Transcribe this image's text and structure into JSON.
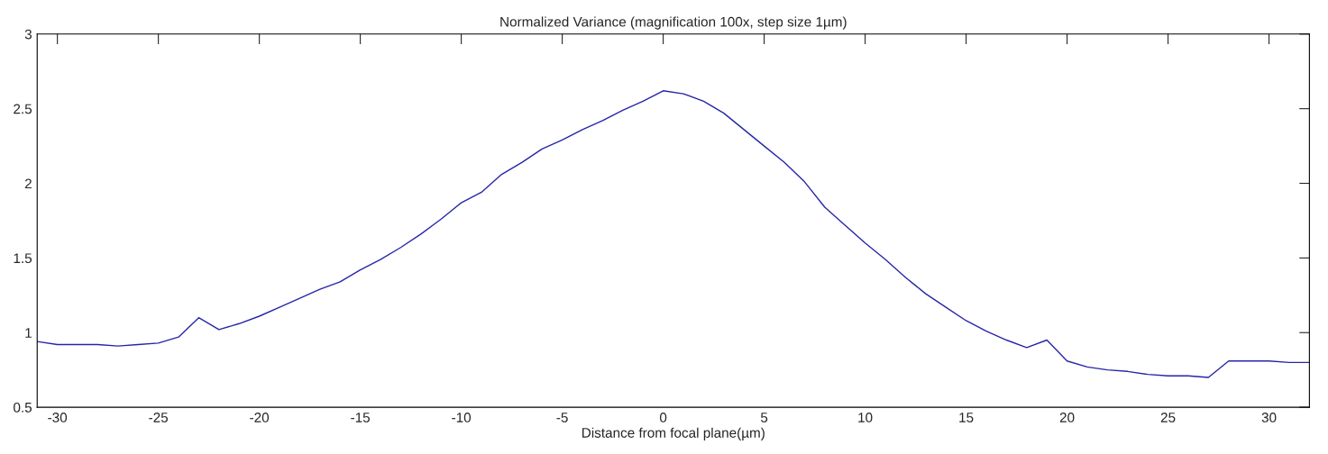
{
  "chart_data": {
    "type": "line",
    "title": "Normalized Variance (magnification 100x, step size 1µm)",
    "xlabel": "Distance from focal plane(µm)",
    "x": [
      -31,
      -30,
      -29,
      -28,
      -27,
      -26,
      -25,
      -24,
      -23,
      -22,
      -21,
      -20,
      -19,
      -18,
      -17,
      -16,
      -15,
      -14,
      -13,
      -12,
      -11,
      -10,
      -9,
      -8,
      -7,
      -6,
      -5,
      -4,
      -3,
      -2,
      -1,
      0,
      1,
      2,
      3,
      4,
      5,
      6,
      7,
      8,
      9,
      10,
      11,
      12,
      13,
      14,
      15,
      16,
      17,
      18,
      19,
      20,
      21,
      22,
      23,
      24,
      25,
      26,
      27,
      28,
      29,
      30,
      31,
      32
    ],
    "series": [
      {
        "color": "#2626a8",
        "values": [
          0.94,
          0.92,
          0.92,
          0.92,
          0.91,
          0.92,
          0.93,
          0.97,
          1.1,
          1.02,
          1.06,
          1.11,
          1.17,
          1.23,
          1.29,
          1.34,
          1.42,
          1.49,
          1.57,
          1.66,
          1.76,
          1.87,
          1.94,
          2.06,
          2.14,
          2.23,
          2.29,
          2.36,
          2.42,
          2.49,
          2.55,
          2.62,
          2.6,
          2.55,
          2.47,
          2.36,
          2.25,
          2.14,
          2.01,
          1.84,
          1.72,
          1.6,
          1.49,
          1.37,
          1.26,
          1.17,
          1.08,
          1.01,
          0.95,
          0.9,
          0.95,
          0.81,
          0.77,
          0.75,
          0.74,
          0.72,
          0.71,
          0.71,
          0.7,
          0.81,
          0.81,
          0.81,
          0.8,
          0.8
        ]
      }
    ],
    "xlim": [
      -31,
      32
    ],
    "xticks": [
      -30,
      -25,
      -20,
      -15,
      -10,
      -5,
      0,
      5,
      10,
      15,
      20,
      25,
      30
    ],
    "ylim": [
      0.5,
      3
    ],
    "yticks": [
      0.5,
      1,
      1.5,
      2,
      2.5,
      3
    ],
    "grid": false,
    "legend": false,
    "marker": "none",
    "line_style": "solid"
  }
}
